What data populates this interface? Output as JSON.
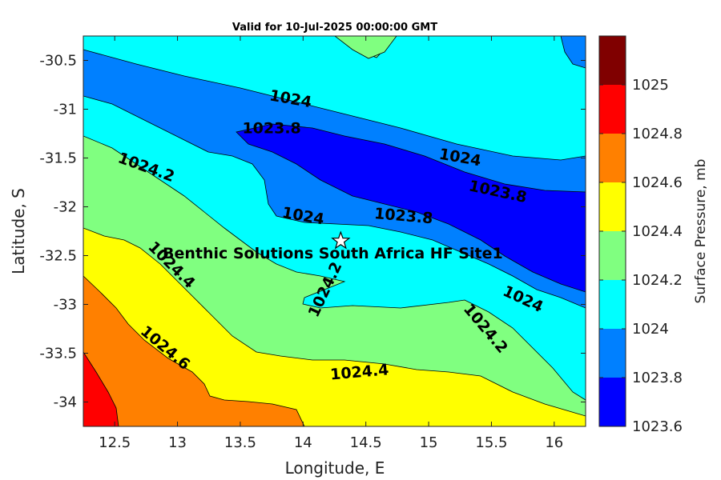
{
  "chart_data": {
    "type": "contour",
    "title": "Valid for 10-Jul-2025 00:00:00 GMT",
    "xlabel": "Longitude, E",
    "ylabel": "Latitude, S",
    "xlim": [
      12.25,
      16.25
    ],
    "ylim": [
      -34.25,
      -30.25
    ],
    "x_ticks": [
      "12.5",
      "13",
      "13.5",
      "14",
      "14.5",
      "15",
      "15.5",
      "16"
    ],
    "y_ticks": [
      "-30.5",
      "-31",
      "-31.5",
      "-32",
      "-32.5",
      "-33",
      "-33.5",
      "-34"
    ],
    "colorbar": {
      "label": "Surface Pressure, mb",
      "levels": [
        "1023.6",
        "1023.8",
        "1024",
        "1024.2",
        "1024.4",
        "1024.6",
        "1024.8",
        "1025"
      ],
      "colors": [
        "#0000ff",
        "#0080ff",
        "#00ffff",
        "#80ff80",
        "#ffff00",
        "#ff8000",
        "#ff0000",
        "#800000"
      ]
    },
    "contour_labels": [
      {
        "text": "1024",
        "lon": 13.9,
        "lat": -30.9,
        "rotate": 10
      },
      {
        "text": "1023.8",
        "lon": 13.75,
        "lat": -31.2,
        "rotate": 0
      },
      {
        "text": "1024",
        "lon": 15.25,
        "lat": -31.5,
        "rotate": 10
      },
      {
        "text": "1024.2",
        "lon": 12.75,
        "lat": -31.6,
        "rotate": 20
      },
      {
        "text": "1023.8",
        "lon": 15.55,
        "lat": -31.85,
        "rotate": 12
      },
      {
        "text": "1024",
        "lon": 14,
        "lat": -32.1,
        "rotate": 10
      },
      {
        "text": "1023.8",
        "lon": 14.8,
        "lat": -32.1,
        "rotate": 5
      },
      {
        "text": "1024.4",
        "lon": 12.95,
        "lat": -32.6,
        "rotate": 45
      },
      {
        "text": "1024.2",
        "lon": 14.18,
        "lat": -32.85,
        "rotate": -65
      },
      {
        "text": "1024",
        "lon": 15.75,
        "lat": -32.95,
        "rotate": 25
      },
      {
        "text": "1024.2",
        "lon": 15.45,
        "lat": -33.25,
        "rotate": 50
      },
      {
        "text": "1024.6",
        "lon": 12.9,
        "lat": -33.45,
        "rotate": 40
      },
      {
        "text": "1024.4",
        "lon": 14.45,
        "lat": -33.7,
        "rotate": -5
      }
    ],
    "site": {
      "name": "Benthic Solutions South Africa HF Site1",
      "lon": 14.3,
      "lat": -32.35
    }
  }
}
